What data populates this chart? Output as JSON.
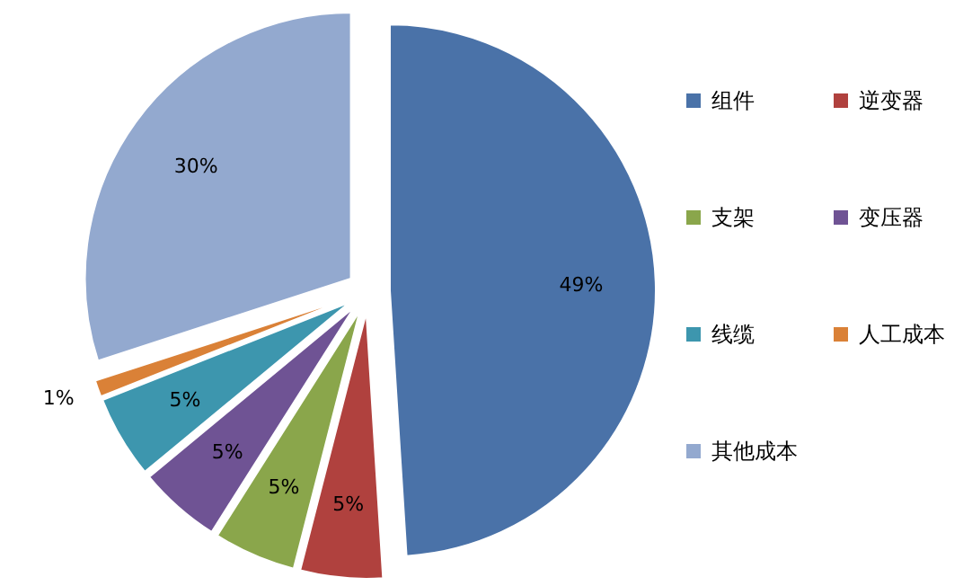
{
  "chart_data": {
    "type": "pie",
    "categories": [
      "组件",
      "逆变器",
      "支架",
      "变压器",
      "线缆",
      "人工成本",
      "其他成本"
    ],
    "values": [
      49,
      5,
      5,
      5,
      5,
      1,
      30
    ],
    "colors": [
      "#4a72a8",
      "#b0413e",
      "#8aa64b",
      "#6f5394",
      "#3d96ae",
      "#da8137",
      "#93a9cf"
    ],
    "value_labels": [
      "49%",
      "5%",
      "5%",
      "5%",
      "5%",
      "1%",
      "30%"
    ],
    "legend": "right"
  }
}
